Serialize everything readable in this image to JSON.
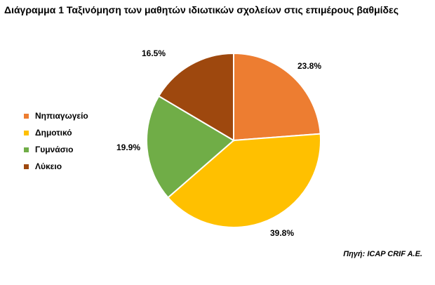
{
  "title": "Διάγραμμα 1 Ταξινόμηση των μαθητών ιδιωτικών σχολείων στις επιμέρους βαθμίδες",
  "source": "Πηγή: ICAP CRIF A.E.",
  "chart_data": {
    "type": "pie",
    "title": "Διάγραμμα 1 Ταξινόμηση των μαθητών ιδιωτικών σχολείων στις επιμέρους βαθμίδες",
    "legend_position": "left",
    "slices": [
      {
        "label": "Νηπιαγωγείο",
        "value": 23.8,
        "display": "23.8%",
        "color": "#ED7D31"
      },
      {
        "label": "Δημοτικό",
        "value": 39.8,
        "display": "39.8%",
        "color": "#FFC000"
      },
      {
        "label": "Γυμνάσιο",
        "value": 19.9,
        "display": "19.9%",
        "color": "#70AD47"
      },
      {
        "label": "Λύκειο",
        "value": 16.5,
        "display": "16.5%",
        "color": "#9E480E"
      }
    ]
  }
}
